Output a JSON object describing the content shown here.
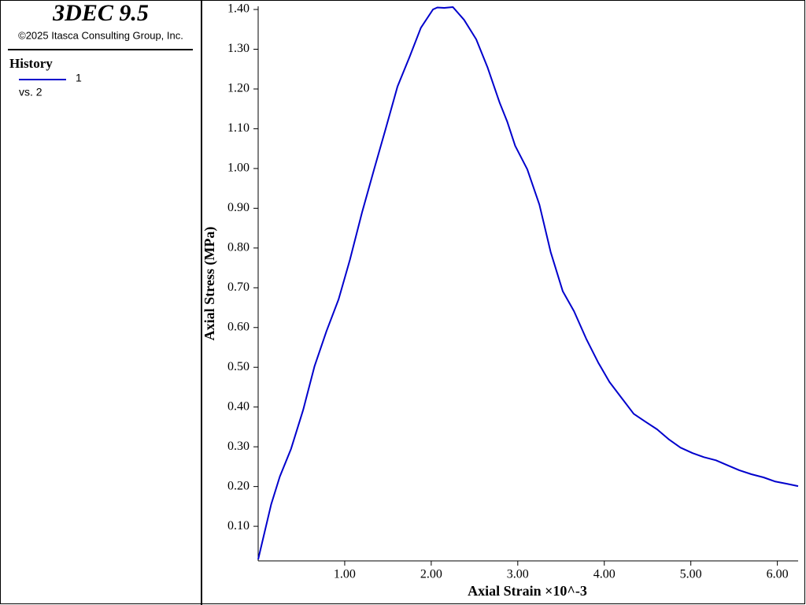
{
  "chart_data": {
    "type": "line",
    "title": "3DEC 9.5",
    "subtitle": "©2025 Itasca Consulting Group, Inc.",
    "legend_title": "History",
    "legend_note": "vs. 2",
    "x_label": "Axial Strain ×10^-3",
    "y_label": "Axial Stress (MPa)",
    "xlim": [
      0,
      6.24
    ],
    "ylim": [
      0.013,
      1.408
    ],
    "xticks": [
      {
        "value": 1,
        "label": "1.00"
      },
      {
        "value": 2,
        "label": "2.00"
      },
      {
        "value": 3,
        "label": "3.00"
      },
      {
        "value": 4,
        "label": "4.00"
      },
      {
        "value": 5,
        "label": "5.00"
      },
      {
        "value": 6,
        "label": "6.00"
      }
    ],
    "yticks": [
      {
        "value": 0.1,
        "label": "0.10"
      },
      {
        "value": 0.2,
        "label": "0.20"
      },
      {
        "value": 0.3,
        "label": "0.30"
      },
      {
        "value": 0.4,
        "label": "0.40"
      },
      {
        "value": 0.5,
        "label": "0.50"
      },
      {
        "value": 0.6,
        "label": "0.60"
      },
      {
        "value": 0.7,
        "label": "0.70"
      },
      {
        "value": 0.8,
        "label": "0.80"
      },
      {
        "value": 0.9,
        "label": "0.90"
      },
      {
        "value": 1,
        "label": "1.00"
      },
      {
        "value": 1.1,
        "label": "1.10"
      },
      {
        "value": 1.2,
        "label": "1.20"
      },
      {
        "value": 1.3,
        "label": "1.30"
      },
      {
        "value": 1.4,
        "label": "1.40"
      }
    ],
    "grid": false,
    "x": [
      0.0,
      0.15,
      0.25,
      0.38,
      0.52,
      0.65,
      0.79,
      0.93,
      1.06,
      1.2,
      1.34,
      1.47,
      1.61,
      1.75,
      1.88,
      2.02,
      2.07,
      2.15,
      2.25,
      2.38,
      2.52,
      2.65,
      2.79,
      2.88,
      2.97,
      3.11,
      3.25,
      3.38,
      3.52,
      3.65,
      3.79,
      3.93,
      4.06,
      4.2,
      4.34,
      4.47,
      4.61,
      4.75,
      4.88,
      5.02,
      5.15,
      5.29,
      5.43,
      5.56,
      5.7,
      5.84,
      5.97,
      6.11,
      6.24
    ],
    "series": [
      {
        "name": "1",
        "color": "#0000cc",
        "values": [
          0.017,
          0.155,
          0.225,
          0.295,
          0.393,
          0.502,
          0.591,
          0.671,
          0.77,
          0.889,
          0.998,
          1.097,
          1.206,
          1.281,
          1.354,
          1.4,
          1.405,
          1.404,
          1.406,
          1.374,
          1.325,
          1.255,
          1.166,
          1.117,
          1.057,
          0.998,
          0.909,
          0.79,
          0.691,
          0.641,
          0.572,
          0.512,
          0.463,
          0.423,
          0.383,
          0.364,
          0.344,
          0.318,
          0.298,
          0.284,
          0.274,
          0.266,
          0.253,
          0.241,
          0.231,
          0.223,
          0.213,
          0.207,
          0.201
        ]
      }
    ]
  }
}
